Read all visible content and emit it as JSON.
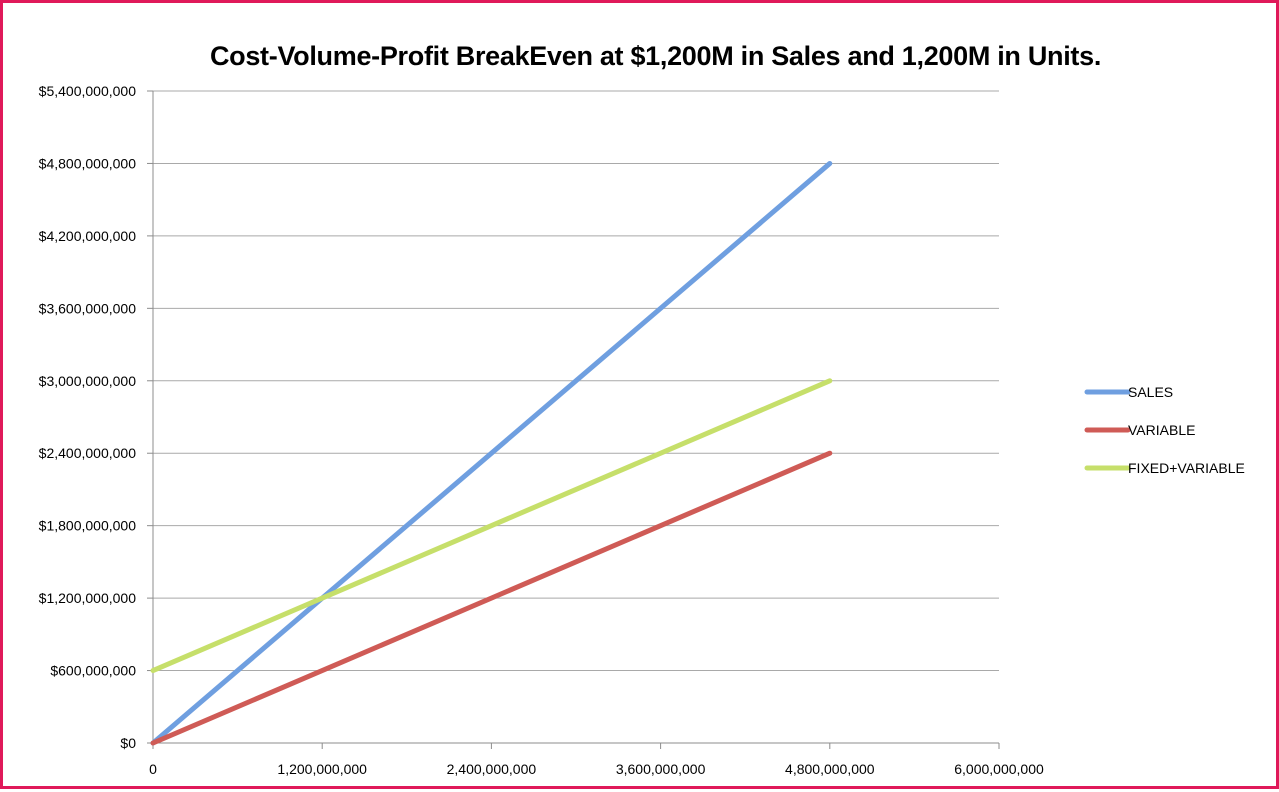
{
  "chart_data": {
    "type": "line",
    "title": "Cost-Volume-Profit BreakEven at $1,200M in Sales and 1,200M in Units.",
    "xlabel": "",
    "ylabel": "",
    "xlim": [
      0,
      6000000000
    ],
    "ylim": [
      0,
      5400000000
    ],
    "x_ticks": [
      0,
      1200000000,
      2400000000,
      3600000000,
      4800000000,
      6000000000
    ],
    "x_tick_labels": [
      "0",
      "1,200,000,000",
      "2,400,000,000",
      "3,600,000,000",
      "4,800,000,000",
      "6,000,000,000"
    ],
    "y_ticks": [
      0,
      600000000,
      1200000000,
      1800000000,
      2400000000,
      3000000000,
      3600000000,
      4200000000,
      4800000000,
      5400000000
    ],
    "y_tick_labels": [
      "$0",
      "$600,000,000",
      "$1,200,000,000",
      "$1,800,000,000",
      "$2,400,000,000",
      "$3,000,000,000",
      "$3,600,000,000",
      "$4,200,000,000",
      "$4,800,000,000",
      "$5,400,000,000"
    ],
    "grid": true,
    "legend_position": "right",
    "series": [
      {
        "name": "SALES",
        "color": "#6f9fe0",
        "x": [
          0,
          4800000000
        ],
        "y": [
          0,
          4800000000
        ]
      },
      {
        "name": "VARIABLE",
        "color": "#cf5b56",
        "x": [
          0,
          4800000000
        ],
        "y": [
          0,
          2400000000
        ]
      },
      {
        "name": "FIXED+VARIABLE",
        "color": "#c6df6a",
        "x": [
          0,
          4800000000
        ],
        "y": [
          600000000,
          3000000000
        ]
      }
    ]
  }
}
